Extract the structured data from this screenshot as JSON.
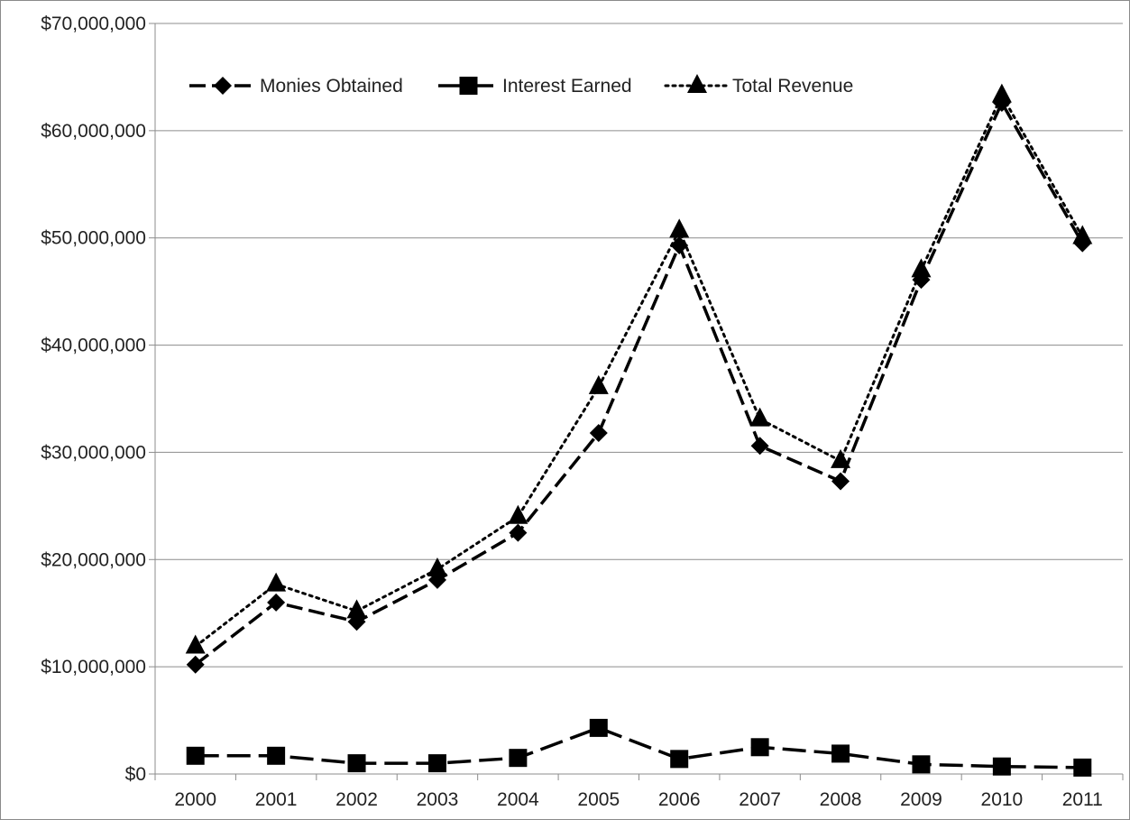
{
  "chart_data": {
    "type": "line",
    "title": "",
    "xlabel": "",
    "ylabel": "",
    "categories": [
      "2000",
      "2001",
      "2002",
      "2003",
      "2004",
      "2005",
      "2006",
      "2007",
      "2008",
      "2009",
      "2010",
      "2011"
    ],
    "ylim": [
      0,
      70000000
    ],
    "yticks": [
      0,
      10000000,
      20000000,
      30000000,
      40000000,
      50000000,
      60000000,
      70000000
    ],
    "ytick_labels": [
      "$0",
      "$10,000,000",
      "$20,000,000",
      "$30,000,000",
      "$40,000,000",
      "$50,000,000",
      "$60,000,000",
      "$70,000,000"
    ],
    "grid": true,
    "legend_position": "top-left",
    "series": [
      {
        "name": "Monies Obtained",
        "marker": "diamond",
        "line_style": "dashed",
        "color": "#000000",
        "values": [
          10200000,
          16000000,
          14200000,
          18100000,
          22500000,
          31800000,
          49300000,
          30600000,
          27300000,
          46100000,
          62600000,
          49500000
        ]
      },
      {
        "name": "Interest Earned",
        "marker": "square",
        "line_style": "long-dashed",
        "color": "#000000",
        "values": [
          1700000,
          1700000,
          1000000,
          1000000,
          1500000,
          4300000,
          1400000,
          2500000,
          1900000,
          900000,
          700000,
          600000
        ]
      },
      {
        "name": "Total Revenue",
        "marker": "triangle",
        "line_style": "dotted",
        "color": "#000000",
        "values": [
          11900000,
          17700000,
          15200000,
          19100000,
          24000000,
          36100000,
          50700000,
          33100000,
          29200000,
          47000000,
          63300000,
          50100000
        ]
      }
    ]
  }
}
